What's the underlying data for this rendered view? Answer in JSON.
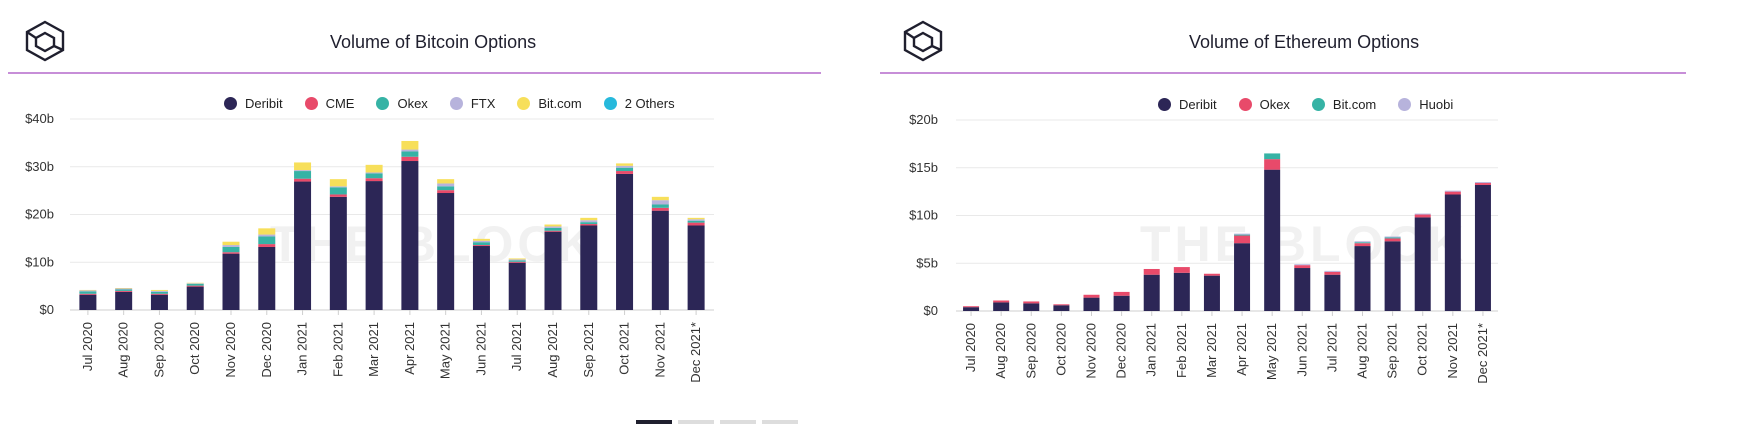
{
  "colors": {
    "Deribit": "#2c2656",
    "CME": "#e84a6a",
    "Okex": "#36b3a5",
    "FTX": "#b7b3dc",
    "Bit.com": "#f7df5a",
    "2 Others": "#27b9dc",
    "Huobi": "#b7b3dc",
    "ethOkex": "#e84a6a",
    "ethBit.com": "#36b3a5",
    "grid": "#e9e9e9",
    "accent_rule": "#c78ed8"
  },
  "charts": [
    {
      "id": "btc",
      "logo_icon": "the-block-cube-icon",
      "watermark": "THE BLOCK",
      "chart_data": {
        "type": "bar",
        "stacked": true,
        "title": "Volume of Bitcoin Options",
        "xlabel": "",
        "ylabel": "",
        "ylim": [
          0,
          40
        ],
        "yticks": [
          "$0",
          "$10b",
          "$20b",
          "$30b",
          "$40b"
        ],
        "categories": [
          "Jul 2020",
          "Aug 2020",
          "Sep 2020",
          "Oct 2020",
          "Nov 2020",
          "Dec 2020",
          "Jan 2021",
          "Feb 2021",
          "Mar 2021",
          "Apr 2021",
          "May 2021",
          "Jun 2021",
          "Jul 2021",
          "Aug 2021",
          "Sep 2021",
          "Oct 2021",
          "Nov 2021",
          "Dec 2021*"
        ],
        "series": [
          {
            "name": "Deribit",
            "values": [
              3.2,
              3.8,
              3.2,
              4.9,
              11.8,
              13.2,
              26.9,
              23.7,
              27.0,
              31.2,
              24.5,
              13.4,
              9.9,
              16.4,
              17.7,
              28.5,
              20.8,
              17.7
            ]
          },
          {
            "name": "CME",
            "values": [
              0.2,
              0.2,
              0.2,
              0.2,
              0.3,
              0.6,
              0.6,
              0.5,
              0.6,
              0.9,
              0.6,
              0.2,
              0.2,
              0.2,
              0.3,
              0.6,
              0.6,
              0.6
            ]
          },
          {
            "name": "Okex",
            "values": [
              0.5,
              0.3,
              0.4,
              0.4,
              1.1,
              1.6,
              1.6,
              1.5,
              1.0,
              1.1,
              0.8,
              0.6,
              0.3,
              0.6,
              0.4,
              0.7,
              0.7,
              0.4
            ]
          },
          {
            "name": "FTX",
            "values": [
              0.2,
              0.2,
              0.2,
              0.1,
              0.4,
              0.4,
              0.2,
              0.2,
              0.2,
              0.4,
              0.6,
              0.3,
              0.2,
              0.3,
              0.4,
              0.4,
              0.9,
              0.3
            ]
          },
          {
            "name": "Bit.com",
            "values": [
              0.1,
              0.1,
              0.2,
              0.1,
              0.7,
              1.3,
              1.6,
              1.5,
              1.6,
              1.8,
              0.9,
              0.4,
              0.2,
              0.4,
              0.5,
              0.5,
              0.7,
              0.3
            ]
          },
          {
            "name": "2 Others",
            "values": [
              0.0,
              0.0,
              0.0,
              0.0,
              0.0,
              0.0,
              0.0,
              0.0,
              0.0,
              0.0,
              0.0,
              0.0,
              0.0,
              0.0,
              0.0,
              0.0,
              0.0,
              0.0
            ]
          }
        ],
        "legend": [
          "Deribit",
          "CME",
          "Okex",
          "FTX",
          "Bit.com",
          "2 Others"
        ],
        "legend_position": "top-center",
        "grid": true
      }
    },
    {
      "id": "eth",
      "logo_icon": "the-block-cube-icon",
      "watermark": "THE BLOCK",
      "chart_data": {
        "type": "bar",
        "stacked": true,
        "title": "Volume of Ethereum Options",
        "xlabel": "",
        "ylabel": "",
        "ylim": [
          0,
          20
        ],
        "yticks": [
          "$0",
          "$5b",
          "$10b",
          "$15b",
          "$20b"
        ],
        "categories": [
          "Jul 2020",
          "Aug 2020",
          "Sep 2020",
          "Oct 2020",
          "Nov 2020",
          "Dec 2020",
          "Jan 2021",
          "Feb 2021",
          "Mar 2021",
          "Apr 2021",
          "May 2021",
          "Jun 2021",
          "Jul 2021",
          "Aug 2021",
          "Sep 2021",
          "Oct 2021",
          "Nov 2021",
          "Dec 2021*"
        ],
        "series": [
          {
            "name": "Deribit",
            "values": [
              0.4,
              0.9,
              0.8,
              0.6,
              1.4,
              1.6,
              3.8,
              4.0,
              3.7,
              7.1,
              14.8,
              4.5,
              3.8,
              6.8,
              7.3,
              9.8,
              12.2,
              13.2
            ]
          },
          {
            "name": "Okex",
            "values": [
              0.1,
              0.2,
              0.2,
              0.1,
              0.3,
              0.4,
              0.6,
              0.6,
              0.2,
              0.8,
              1.1,
              0.3,
              0.3,
              0.3,
              0.3,
              0.3,
              0.3,
              0.2
            ]
          },
          {
            "name": "Bit.com",
            "values": [
              0.0,
              0.0,
              0.0,
              0.0,
              0.0,
              0.0,
              0.0,
              0.0,
              0.0,
              0.1,
              0.6,
              0.0,
              0.0,
              0.1,
              0.1,
              0.0,
              0.0,
              0.0
            ]
          },
          {
            "name": "Huobi",
            "values": [
              0.0,
              0.0,
              0.0,
              0.0,
              0.0,
              0.0,
              0.0,
              0.0,
              0.0,
              0.1,
              0.0,
              0.1,
              0.1,
              0.1,
              0.1,
              0.1,
              0.1,
              0.1
            ]
          }
        ],
        "legend": [
          "Deribit",
          "Okex",
          "Bit.com",
          "Huobi"
        ],
        "legend_position": "top-center",
        "grid": true
      }
    }
  ]
}
